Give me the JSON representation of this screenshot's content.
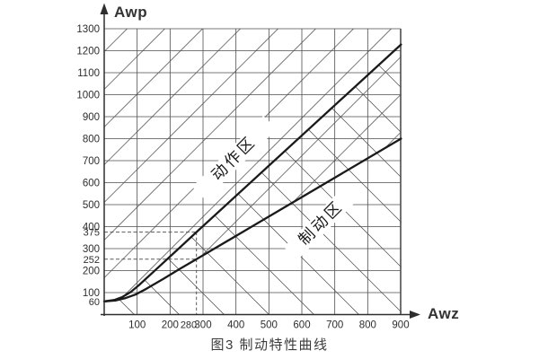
{
  "figure": {
    "caption": "图3  制动特性曲线"
  },
  "colors": {
    "background": "#ffffff",
    "curve": "#1a1a1a",
    "grid": "#4d4d4d",
    "hatch": "#4d4d4d",
    "dashed": "#5a5a5a",
    "text": "#2e2e2e"
  },
  "chart_data": {
    "type": "line",
    "title": "图3 制动特性曲线",
    "xlabel": "Awz",
    "ylabel": "Awp",
    "xlim": [
      0,
      905
    ],
    "ylim": [
      0,
      1326
    ],
    "grid": "on",
    "legend_position": "none",
    "x_ticks": [
      100,
      200,
      280,
      300,
      400,
      500,
      600,
      700,
      800,
      900
    ],
    "y_ticks": [
      60,
      100,
      200,
      252,
      300,
      375,
      400,
      500,
      600,
      700,
      800,
      900,
      1000,
      1100,
      1200,
      1300
    ],
    "reference_lines": {
      "awz": 280,
      "awp_action": 375,
      "awp_braking": 252
    },
    "regions": [
      {
        "label": "动作区",
        "hatch": "/",
        "meaning": "action zone (above upper curve)"
      },
      {
        "label": "制动区",
        "hatch": "\\",
        "meaning": "braking zone (below lower curve)"
      }
    ],
    "series": [
      {
        "name": "动作区",
        "role": "action-zone-boundary",
        "points": [
          [
            0,
            60
          ],
          [
            30,
            66
          ],
          [
            55,
            80
          ],
          [
            80,
            102
          ],
          [
            105,
            133
          ],
          [
            160,
            209
          ],
          [
            220,
            292
          ],
          [
            280,
            375
          ],
          [
            901,
            1228
          ]
        ]
      },
      {
        "name": "制动区",
        "role": "braking-zone-boundary",
        "points": [
          [
            0,
            60
          ],
          [
            35,
            64
          ],
          [
            65,
            75
          ],
          [
            95,
            91
          ],
          [
            128,
            117
          ],
          [
            180,
            163
          ],
          [
            230,
            208
          ],
          [
            280,
            252
          ],
          [
            901,
            800
          ]
        ]
      }
    ]
  }
}
